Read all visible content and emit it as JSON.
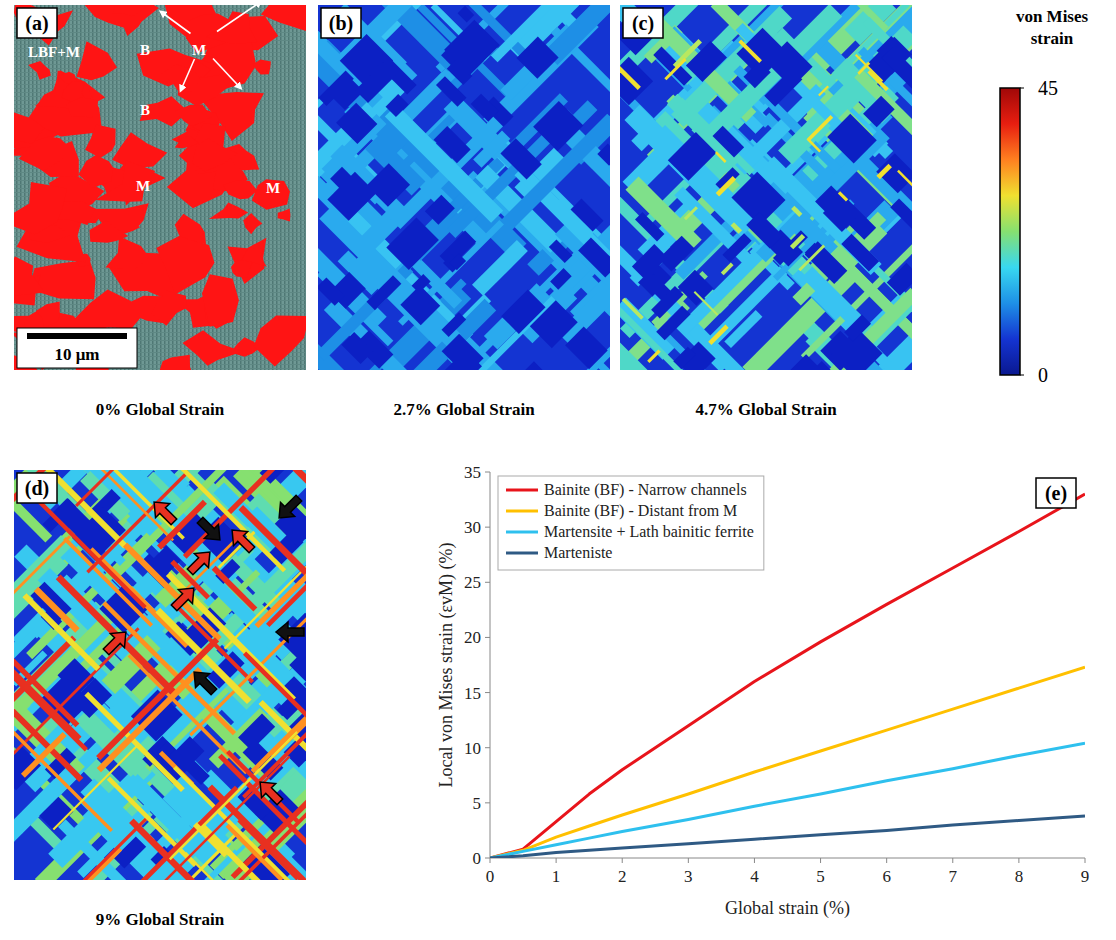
{
  "images": [
    {
      "label": "(a)",
      "caption": "0% Global Strain",
      "annotations": [
        "LBF+M",
        "B",
        "M",
        "B",
        "M",
        "M"
      ],
      "scale_bar": "10 μm"
    },
    {
      "label": "(b)",
      "caption": "2.7% Global Strain"
    },
    {
      "label": "(c)",
      "caption": "4.7% Global Strain"
    },
    {
      "label": "(d)",
      "caption": "9% Global Strain"
    }
  ],
  "colorbar": {
    "title": "von Mises strain",
    "range": [
      0,
      45
    ],
    "ticks": [
      0,
      45
    ]
  },
  "chart_data": {
    "type": "line",
    "panel": "(e)",
    "x_label": "Global strain (%)",
    "y_label": "Local von Mises strain (εvM) (%)",
    "x": [
      0,
      0.5,
      1,
      1.5,
      2,
      3,
      4,
      5,
      6,
      7,
      8,
      9
    ],
    "series": [
      {
        "name": "Bainite (BF) - Narrow channels",
        "color": "#e8141b",
        "values": [
          0,
          0.8,
          3.3,
          5.8,
          8,
          12,
          16,
          19.6,
          23,
          26.3,
          29.6,
          33
        ]
      },
      {
        "name": "Bainite (BF) - Distant from M",
        "color": "#ffc000",
        "values": [
          0,
          0.7,
          1.9,
          2.9,
          3.9,
          5.8,
          7.8,
          9.7,
          11.6,
          13.5,
          15.4,
          17.3
        ]
      },
      {
        "name": "Martensite + Lath bainitic ferrite",
        "color": "#2ec0ee",
        "values": [
          0,
          0.6,
          1.2,
          1.8,
          2.4,
          3.5,
          4.7,
          5.8,
          7,
          8.1,
          9.3,
          10.4
        ]
      },
      {
        "name": "Marteniste",
        "color": "#2f5a84",
        "values": [
          0,
          0.2,
          0.5,
          0.7,
          0.9,
          1.3,
          1.7,
          2.1,
          2.5,
          3,
          3.4,
          3.8
        ]
      }
    ],
    "xlim": [
      0,
      9
    ],
    "ylim": [
      0,
      35
    ],
    "xticks": [
      0,
      1,
      2,
      3,
      4,
      5,
      6,
      7,
      8,
      9
    ],
    "yticks": [
      0,
      5,
      10,
      15,
      20,
      25,
      30,
      35
    ],
    "legend": "upper left"
  }
}
